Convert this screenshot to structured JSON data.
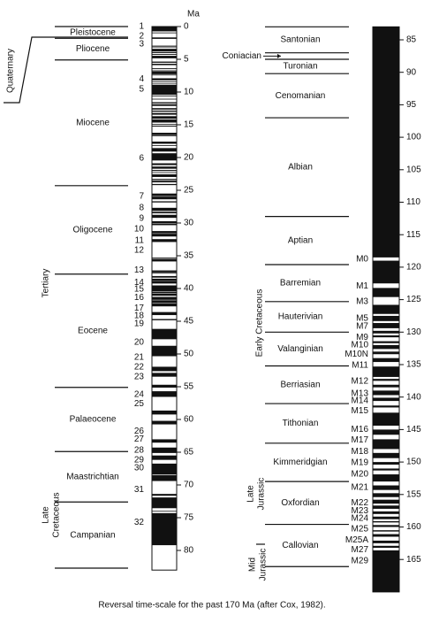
{
  "left": {
    "axis_label": "Ma",
    "range": [
      0,
      83
    ],
    "ticks": [
      0,
      5,
      10,
      15,
      20,
      25,
      30,
      35,
      40,
      45,
      50,
      55,
      60,
      65,
      70,
      75,
      80
    ],
    "epoch_names": [
      "Pleistocene",
      "Pliocene",
      "Miocene",
      "Oligocene",
      "Eocene",
      "Palaeocene",
      "Maastrichtian",
      "Campanian"
    ],
    "epoch_boundaries": [
      0,
      1.8,
      5.1,
      24.3,
      37.8,
      55.1,
      64.9,
      72.6,
      82.7
    ],
    "periods": [
      {
        "lines": [
          "Quaternary"
        ]
      },
      {
        "lines": [
          "Tertiary"
        ]
      },
      {
        "lines": [
          "Late",
          "Cretaceous"
        ]
      }
    ],
    "anomalies": [
      {
        "label": "1",
        "age": 0
      },
      {
        "label": "2",
        "age": 1.5
      },
      {
        "label": "3",
        "age": 2.7
      },
      {
        "label": "4",
        "age": 8.0
      },
      {
        "label": "5",
        "age": 9.6
      },
      {
        "label": "6",
        "age": 20.1
      },
      {
        "label": "7",
        "age": 25.9
      },
      {
        "label": "8",
        "age": 27.7
      },
      {
        "label": "9",
        "age": 29.3
      },
      {
        "label": "10",
        "age": 30.9
      },
      {
        "label": "11",
        "age": 32.7
      },
      {
        "label": "12",
        "age": 34.2
      },
      {
        "label": "13",
        "age": 37.2
      },
      {
        "label": "14",
        "age": 39.1
      },
      {
        "label": "15",
        "age": 40.1
      },
      {
        "label": "16",
        "age": 41.4
      },
      {
        "label": "17",
        "age": 43.0
      },
      {
        "label": "18",
        "age": 44.2
      },
      {
        "label": "19",
        "age": 45.4
      },
      {
        "label": "20",
        "age": 48.2
      },
      {
        "label": "21",
        "age": 50.5
      },
      {
        "label": "22",
        "age": 52.0
      },
      {
        "label": "23",
        "age": 53.5
      },
      {
        "label": "24",
        "age": 56.2
      },
      {
        "label": "25",
        "age": 57.6
      },
      {
        "label": "26",
        "age": 61.8
      },
      {
        "label": "27",
        "age": 63.0
      },
      {
        "label": "28",
        "age": 64.7
      },
      {
        "label": "29",
        "age": 66.2
      },
      {
        "label": "30",
        "age": 67.4
      },
      {
        "label": "31",
        "age": 70.7
      },
      {
        "label": "32",
        "age": 75.7
      }
    ],
    "normal": [
      [
        0,
        0.73
      ],
      [
        0.91,
        0.98
      ],
      [
        1.66,
        1.88
      ],
      [
        2.92,
        2.99
      ],
      [
        3.07,
        3.17
      ],
      [
        3.4,
        3.8
      ],
      [
        3.9,
        4.05
      ],
      [
        4.2,
        4.32
      ],
      [
        4.47,
        4.85
      ],
      [
        5.35,
        5.53
      ],
      [
        5.68,
        5.89
      ],
      [
        6.37,
        6.5
      ],
      [
        6.7,
        6.78
      ],
      [
        6.85,
        7.28
      ],
      [
        7.35,
        7.41
      ],
      [
        7.9,
        8.21
      ],
      [
        8.41,
        8.5
      ],
      [
        8.71,
        8.8
      ],
      [
        8.92,
        10.42
      ],
      [
        10.54,
        10.59
      ],
      [
        11.03,
        11.09
      ],
      [
        11.55,
        11.73
      ],
      [
        11.86,
        12.12
      ],
      [
        12.46,
        12.49
      ],
      [
        12.58,
        12.62
      ],
      [
        12.83,
        13.01
      ],
      [
        13.2,
        13.46
      ],
      [
        13.69,
        14.08
      ],
      [
        14.2,
        14.66
      ],
      [
        14.87,
        14.96
      ],
      [
        15.13,
        15.27
      ],
      [
        16.22,
        16.52
      ],
      [
        16.56,
        16.73
      ],
      [
        17.57,
        17.9
      ],
      [
        18.12,
        18.14
      ],
      [
        18.56,
        19.09
      ],
      [
        19.35,
        20.45
      ],
      [
        20.88,
        21.16
      ],
      [
        21.38,
        21.71
      ],
      [
        21.9,
        22.06
      ],
      [
        22.25,
        22.35
      ],
      [
        22.57,
        22.97
      ],
      [
        23.27,
        23.44
      ],
      [
        23.55,
        23.79
      ],
      [
        24.04,
        24.21
      ],
      [
        25.5,
        25.82
      ],
      [
        25.87,
        25.91
      ],
      [
        25.98,
        26.38
      ],
      [
        26.68,
        26.86
      ],
      [
        27.68,
        28.15
      ],
      [
        28.29,
        28.52
      ],
      [
        28.75,
        29.21
      ],
      [
        29.73,
        30.03
      ],
      [
        30.09,
        30.33
      ],
      [
        31.23,
        31.58
      ],
      [
        31.64,
        32.06
      ],
      [
        32.46,
        32.9
      ],
      [
        35.29,
        35.47
      ],
      [
        35.54,
        35.87
      ],
      [
        37.24,
        37.46
      ],
      [
        37.48,
        37.68
      ],
      [
        38.1,
        38.34
      ],
      [
        38.5,
        38.79
      ],
      [
        38.83,
        39.24
      ],
      [
        39.53,
        40.43
      ],
      [
        40.5,
        40.7
      ],
      [
        40.77,
        41.11
      ],
      [
        41.29,
        41.73
      ],
      [
        41.8,
        42.23
      ],
      [
        42.3,
        42.73
      ],
      [
        43.6,
        44.06
      ],
      [
        44.66,
        44.85
      ],
      [
        46.17,
        47.75
      ],
      [
        48.75,
        50.34
      ],
      [
        51.95,
        52.62
      ],
      [
        52.89,
        53.47
      ],
      [
        54.7,
        55.14
      ],
      [
        55.69,
        56.55
      ],
      [
        58.64,
        59.24
      ],
      [
        60.21,
        60.75
      ],
      [
        63.03,
        63.54
      ],
      [
        64.29,
        65.12
      ],
      [
        65.5,
        66.17
      ],
      [
        66.74,
        68.42
      ],
      [
        68.52,
        69.4
      ],
      [
        71.37,
        71.65
      ],
      [
        71.91,
        73.55
      ],
      [
        73.96,
        74.01
      ],
      [
        74.3,
        79.2
      ]
    ]
  },
  "right": {
    "range": [
      83,
      170
    ],
    "ticks": [
      85,
      90,
      95,
      100,
      105,
      110,
      115,
      120,
      125,
      130,
      135,
      140,
      145,
      150,
      155,
      160,
      165
    ],
    "stage_names": [
      "Santonian",
      "Coniacian",
      "Turonian",
      "Cenomanian",
      "Albian",
      "Aptian",
      "Barremian",
      "Hauterivian",
      "Valanginian",
      "Berriasian",
      "Tithonian",
      "Kimmeridgian",
      "Oxfordian",
      "Callovian"
    ],
    "stage_boundaries": [
      83.0,
      87.0,
      88.0,
      90.2,
      97.0,
      112.2,
      119.6,
      125.3,
      130.0,
      135.2,
      141.0,
      147.1,
      153.0,
      159.6,
      166.1
    ],
    "periods": [
      {
        "lines": [
          "Early Cretaceous"
        ]
      },
      {
        "lines": [
          "Late",
          "Jurassic"
        ]
      },
      {
        "lines": [
          "Mid",
          "Jurassic"
        ]
      }
    ],
    "anomalies": [
      {
        "label": "M0",
        "age": 118.8
      },
      {
        "label": "M1",
        "age": 122.9
      },
      {
        "label": "M3",
        "age": 125.3
      },
      {
        "label": "M5",
        "age": 127.9
      },
      {
        "label": "M7",
        "age": 129.1
      },
      {
        "label": "M9",
        "age": 130.8
      },
      {
        "label": "M10",
        "age": 132.0
      },
      {
        "label": "M10N",
        "age": 133.4
      },
      {
        "label": "M11",
        "age": 135.1
      },
      {
        "label": "M12",
        "age": 137.6
      },
      {
        "label": "M13",
        "age": 139.5
      },
      {
        "label": "M14",
        "age": 140.6
      },
      {
        "label": "M15",
        "age": 142.1
      },
      {
        "label": "M16",
        "age": 145.0
      },
      {
        "label": "M17",
        "age": 146.6
      },
      {
        "label": "M18",
        "age": 148.4
      },
      {
        "label": "M19",
        "age": 150.1
      },
      {
        "label": "M20",
        "age": 151.9
      },
      {
        "label": "M21",
        "age": 153.9
      },
      {
        "label": "M22",
        "age": 156.3
      },
      {
        "label": "M23",
        "age": 157.5
      },
      {
        "label": "M24",
        "age": 158.7
      },
      {
        "label": "M25",
        "age": 160.3
      },
      {
        "label": "M25A",
        "age": 162.0
      },
      {
        "label": "M27",
        "age": 163.5
      },
      {
        "label": "M29",
        "age": 165.2
      }
    ],
    "normal": [
      [
        83,
        118.5
      ],
      [
        119,
        122.5
      ],
      [
        123.2,
        124.6
      ],
      [
        125.8,
        127.2
      ],
      [
        127.5,
        128.3
      ],
      [
        128.6,
        129.4
      ],
      [
        129.8,
        130.2
      ],
      [
        130.5,
        130.8
      ],
      [
        131.4,
        131.7
      ],
      [
        132,
        132.6
      ],
      [
        133,
        133.4
      ],
      [
        134,
        134.6
      ],
      [
        135.3,
        136.9
      ],
      [
        137.2,
        137.5
      ],
      [
        138.1,
        138.5
      ],
      [
        139,
        139.7
      ],
      [
        140.1,
        140.6
      ],
      [
        141.3,
        141.6
      ],
      [
        142.4,
        144.4
      ],
      [
        145,
        145.8
      ],
      [
        146.5,
        148
      ],
      [
        148.6,
        149.4
      ],
      [
        150,
        150.4
      ],
      [
        151,
        151.3
      ],
      [
        151.9,
        153
      ],
      [
        153.6,
        154.3
      ],
      [
        154.8,
        155.4
      ],
      [
        155.8,
        156.4
      ],
      [
        156.7,
        157.2
      ],
      [
        157.6,
        158
      ],
      [
        158.4,
        158.8
      ],
      [
        159.1,
        159.3
      ],
      [
        159.7,
        160
      ],
      [
        160.5,
        160.7
      ],
      [
        161.1,
        161.5
      ],
      [
        162.1,
        162.5
      ],
      [
        162.9,
        163.2
      ],
      [
        163.6,
        170
      ]
    ]
  },
  "caption": "Reversal time-scale for the past 170 Ma (after Cox, 1982)."
}
